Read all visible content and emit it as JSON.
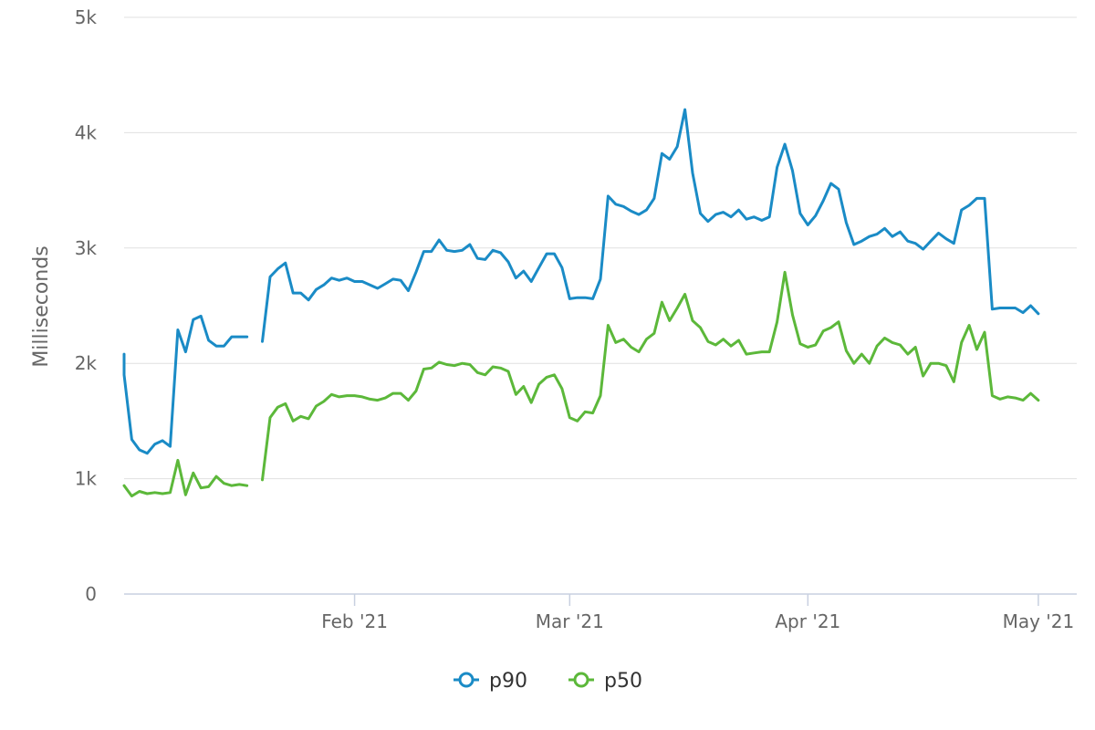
{
  "chart_data": {
    "type": "line",
    "ylabel": "Milliseconds",
    "ylim": [
      0,
      5000
    ],
    "y_ticks": [
      {
        "value": 0,
        "label": "0"
      },
      {
        "value": 1000,
        "label": "1k"
      },
      {
        "value": 2000,
        "label": "2k"
      },
      {
        "value": 3000,
        "label": "3k"
      },
      {
        "value": 4000,
        "label": "4k"
      },
      {
        "value": 5000,
        "label": "5k"
      }
    ],
    "xlim": [
      "2021-01-02",
      "2021-05-06"
    ],
    "x_ticks": [
      {
        "value": "2021-02-01",
        "label": "Feb '21"
      },
      {
        "value": "2021-03-01",
        "label": "Mar '21"
      },
      {
        "value": "2021-04-01",
        "label": "Apr '21"
      },
      {
        "value": "2021-05-01",
        "label": "May '21"
      }
    ],
    "grid": true,
    "legend_position": "bottom-center",
    "colors": {
      "p90": "#1a8bc6",
      "p50": "#5cb83a"
    },
    "series": [
      {
        "name": "p90",
        "color": "#1a8bc6",
        "points": [
          [
            "2021-01-02",
            2080
          ],
          [
            "2021-01-02",
            1900
          ],
          [
            "2021-01-03",
            1340
          ],
          [
            "2021-01-04",
            1250
          ],
          [
            "2021-01-05",
            1220
          ],
          [
            "2021-01-06",
            1300
          ],
          [
            "2021-01-07",
            1330
          ],
          [
            "2021-01-08",
            1280
          ],
          [
            "2021-01-09",
            2290
          ],
          [
            "2021-01-10",
            2100
          ],
          [
            "2021-01-11",
            2380
          ],
          [
            "2021-01-12",
            2410
          ],
          [
            "2021-01-13",
            2200
          ],
          [
            "2021-01-14",
            2150
          ],
          [
            "2021-01-15",
            2150
          ],
          [
            "2021-01-16",
            2230
          ],
          [
            "2021-01-17",
            2230
          ],
          [
            "2021-01-18",
            2230
          ],
          [
            "2021-01-19",
            null
          ],
          [
            "2021-01-20",
            2190
          ],
          [
            "2021-01-21",
            2750
          ],
          [
            "2021-01-22",
            2820
          ],
          [
            "2021-01-23",
            2870
          ],
          [
            "2021-01-24",
            2610
          ],
          [
            "2021-01-25",
            2610
          ],
          [
            "2021-01-26",
            2550
          ],
          [
            "2021-01-27",
            2640
          ],
          [
            "2021-01-28",
            2680
          ],
          [
            "2021-01-29",
            2740
          ],
          [
            "2021-01-30",
            2720
          ],
          [
            "2021-01-31",
            2740
          ],
          [
            "2021-02-01",
            2710
          ],
          [
            "2021-02-02",
            2710
          ],
          [
            "2021-02-03",
            2680
          ],
          [
            "2021-02-04",
            2650
          ],
          [
            "2021-02-05",
            2690
          ],
          [
            "2021-02-06",
            2730
          ],
          [
            "2021-02-07",
            2720
          ],
          [
            "2021-02-08",
            2630
          ],
          [
            "2021-02-09",
            2790
          ],
          [
            "2021-02-10",
            2970
          ],
          [
            "2021-02-11",
            2970
          ],
          [
            "2021-02-12",
            3070
          ],
          [
            "2021-02-13",
            2980
          ],
          [
            "2021-02-14",
            2970
          ],
          [
            "2021-02-15",
            2980
          ],
          [
            "2021-02-16",
            3030
          ],
          [
            "2021-02-17",
            2910
          ],
          [
            "2021-02-18",
            2900
          ],
          [
            "2021-02-19",
            2980
          ],
          [
            "2021-02-20",
            2960
          ],
          [
            "2021-02-21",
            2880
          ],
          [
            "2021-02-22",
            2740
          ],
          [
            "2021-02-23",
            2800
          ],
          [
            "2021-02-24",
            2710
          ],
          [
            "2021-02-25",
            2830
          ],
          [
            "2021-02-26",
            2950
          ],
          [
            "2021-02-27",
            2950
          ],
          [
            "2021-02-28",
            2830
          ],
          [
            "2021-03-01",
            2560
          ],
          [
            "2021-03-02",
            2570
          ],
          [
            "2021-03-03",
            2570
          ],
          [
            "2021-03-04",
            2560
          ],
          [
            "2021-03-05",
            2730
          ],
          [
            "2021-03-06",
            3450
          ],
          [
            "2021-03-07",
            3380
          ],
          [
            "2021-03-08",
            3360
          ],
          [
            "2021-03-09",
            3320
          ],
          [
            "2021-03-10",
            3290
          ],
          [
            "2021-03-11",
            3330
          ],
          [
            "2021-03-12",
            3430
          ],
          [
            "2021-03-13",
            3820
          ],
          [
            "2021-03-14",
            3770
          ],
          [
            "2021-03-15",
            3880
          ],
          [
            "2021-03-16",
            4200
          ],
          [
            "2021-03-17",
            3650
          ],
          [
            "2021-03-18",
            3300
          ],
          [
            "2021-03-19",
            3230
          ],
          [
            "2021-03-20",
            3290
          ],
          [
            "2021-03-21",
            3310
          ],
          [
            "2021-03-22",
            3270
          ],
          [
            "2021-03-23",
            3330
          ],
          [
            "2021-03-24",
            3250
          ],
          [
            "2021-03-25",
            3270
          ],
          [
            "2021-03-26",
            3240
          ],
          [
            "2021-03-27",
            3270
          ],
          [
            "2021-03-28",
            3700
          ],
          [
            "2021-03-29",
            3900
          ],
          [
            "2021-03-30",
            3670
          ],
          [
            "2021-03-31",
            3300
          ],
          [
            "2021-04-01",
            3200
          ],
          [
            "2021-04-02",
            3280
          ],
          [
            "2021-04-03",
            3410
          ],
          [
            "2021-04-04",
            3560
          ],
          [
            "2021-04-05",
            3510
          ],
          [
            "2021-04-06",
            3220
          ],
          [
            "2021-04-07",
            3030
          ],
          [
            "2021-04-08",
            3060
          ],
          [
            "2021-04-09",
            3100
          ],
          [
            "2021-04-10",
            3120
          ],
          [
            "2021-04-11",
            3170
          ],
          [
            "2021-04-12",
            3100
          ],
          [
            "2021-04-13",
            3140
          ],
          [
            "2021-04-14",
            3060
          ],
          [
            "2021-04-15",
            3040
          ],
          [
            "2021-04-16",
            2990
          ],
          [
            "2021-04-17",
            3060
          ],
          [
            "2021-04-18",
            3130
          ],
          [
            "2021-04-19",
            3080
          ],
          [
            "2021-04-20",
            3040
          ],
          [
            "2021-04-21",
            3330
          ],
          [
            "2021-04-22",
            3370
          ],
          [
            "2021-04-23",
            3430
          ],
          [
            "2021-04-24",
            3430
          ],
          [
            "2021-04-25",
            2470
          ],
          [
            "2021-04-26",
            2480
          ],
          [
            "2021-04-27",
            2480
          ],
          [
            "2021-04-28",
            2480
          ],
          [
            "2021-04-29",
            2440
          ],
          [
            "2021-04-30",
            2500
          ],
          [
            "2021-05-01",
            2430
          ]
        ]
      },
      {
        "name": "p50",
        "color": "#5cb83a",
        "points": [
          [
            "2021-01-02",
            940
          ],
          [
            "2021-01-03",
            850
          ],
          [
            "2021-01-04",
            890
          ],
          [
            "2021-01-05",
            870
          ],
          [
            "2021-01-06",
            880
          ],
          [
            "2021-01-07",
            870
          ],
          [
            "2021-01-08",
            880
          ],
          [
            "2021-01-09",
            1160
          ],
          [
            "2021-01-10",
            860
          ],
          [
            "2021-01-11",
            1050
          ],
          [
            "2021-01-12",
            920
          ],
          [
            "2021-01-13",
            930
          ],
          [
            "2021-01-14",
            1020
          ],
          [
            "2021-01-15",
            960
          ],
          [
            "2021-01-16",
            940
          ],
          [
            "2021-01-17",
            950
          ],
          [
            "2021-01-18",
            940
          ],
          [
            "2021-01-19",
            null
          ],
          [
            "2021-01-20",
            990
          ],
          [
            "2021-01-21",
            1530
          ],
          [
            "2021-01-22",
            1620
          ],
          [
            "2021-01-23",
            1650
          ],
          [
            "2021-01-24",
            1500
          ],
          [
            "2021-01-25",
            1540
          ],
          [
            "2021-01-26",
            1520
          ],
          [
            "2021-01-27",
            1630
          ],
          [
            "2021-01-28",
            1670
          ],
          [
            "2021-01-29",
            1730
          ],
          [
            "2021-01-30",
            1710
          ],
          [
            "2021-01-31",
            1720
          ],
          [
            "2021-02-01",
            1720
          ],
          [
            "2021-02-02",
            1710
          ],
          [
            "2021-02-03",
            1690
          ],
          [
            "2021-02-04",
            1680
          ],
          [
            "2021-02-05",
            1700
          ],
          [
            "2021-02-06",
            1740
          ],
          [
            "2021-02-07",
            1740
          ],
          [
            "2021-02-08",
            1680
          ],
          [
            "2021-02-09",
            1760
          ],
          [
            "2021-02-10",
            1950
          ],
          [
            "2021-02-11",
            1960
          ],
          [
            "2021-02-12",
            2010
          ],
          [
            "2021-02-13",
            1990
          ],
          [
            "2021-02-14",
            1980
          ],
          [
            "2021-02-15",
            2000
          ],
          [
            "2021-02-16",
            1990
          ],
          [
            "2021-02-17",
            1920
          ],
          [
            "2021-02-18",
            1900
          ],
          [
            "2021-02-19",
            1970
          ],
          [
            "2021-02-20",
            1960
          ],
          [
            "2021-02-21",
            1930
          ],
          [
            "2021-02-22",
            1730
          ],
          [
            "2021-02-23",
            1800
          ],
          [
            "2021-02-24",
            1660
          ],
          [
            "2021-02-25",
            1820
          ],
          [
            "2021-02-26",
            1880
          ],
          [
            "2021-02-27",
            1900
          ],
          [
            "2021-02-28",
            1780
          ],
          [
            "2021-03-01",
            1530
          ],
          [
            "2021-03-02",
            1500
          ],
          [
            "2021-03-03",
            1580
          ],
          [
            "2021-03-04",
            1570
          ],
          [
            "2021-03-05",
            1720
          ],
          [
            "2021-03-06",
            2330
          ],
          [
            "2021-03-07",
            2180
          ],
          [
            "2021-03-08",
            2210
          ],
          [
            "2021-03-09",
            2140
          ],
          [
            "2021-03-10",
            2100
          ],
          [
            "2021-03-11",
            2210
          ],
          [
            "2021-03-12",
            2260
          ],
          [
            "2021-03-13",
            2530
          ],
          [
            "2021-03-14",
            2370
          ],
          [
            "2021-03-15",
            2480
          ],
          [
            "2021-03-16",
            2600
          ],
          [
            "2021-03-17",
            2370
          ],
          [
            "2021-03-18",
            2310
          ],
          [
            "2021-03-19",
            2190
          ],
          [
            "2021-03-20",
            2160
          ],
          [
            "2021-03-21",
            2210
          ],
          [
            "2021-03-22",
            2150
          ],
          [
            "2021-03-23",
            2200
          ],
          [
            "2021-03-24",
            2080
          ],
          [
            "2021-03-25",
            2090
          ],
          [
            "2021-03-26",
            2100
          ],
          [
            "2021-03-27",
            2100
          ],
          [
            "2021-03-28",
            2360
          ],
          [
            "2021-03-29",
            2790
          ],
          [
            "2021-03-30",
            2420
          ],
          [
            "2021-03-31",
            2170
          ],
          [
            "2021-04-01",
            2140
          ],
          [
            "2021-04-02",
            2160
          ],
          [
            "2021-04-03",
            2280
          ],
          [
            "2021-04-04",
            2310
          ],
          [
            "2021-04-05",
            2360
          ],
          [
            "2021-04-06",
            2110
          ],
          [
            "2021-04-07",
            2000
          ],
          [
            "2021-04-08",
            2080
          ],
          [
            "2021-04-09",
            2000
          ],
          [
            "2021-04-10",
            2150
          ],
          [
            "2021-04-11",
            2220
          ],
          [
            "2021-04-12",
            2180
          ],
          [
            "2021-04-13",
            2160
          ],
          [
            "2021-04-14",
            2080
          ],
          [
            "2021-04-15",
            2140
          ],
          [
            "2021-04-16",
            1890
          ],
          [
            "2021-04-17",
            2000
          ],
          [
            "2021-04-18",
            2000
          ],
          [
            "2021-04-19",
            1980
          ],
          [
            "2021-04-20",
            1840
          ],
          [
            "2021-04-21",
            2180
          ],
          [
            "2021-04-22",
            2330
          ],
          [
            "2021-04-23",
            2120
          ],
          [
            "2021-04-24",
            2270
          ],
          [
            "2021-04-25",
            1720
          ],
          [
            "2021-04-26",
            1690
          ],
          [
            "2021-04-27",
            1710
          ],
          [
            "2021-04-28",
            1700
          ],
          [
            "2021-04-29",
            1680
          ],
          [
            "2021-04-30",
            1740
          ],
          [
            "2021-05-01",
            1680
          ]
        ]
      }
    ]
  }
}
